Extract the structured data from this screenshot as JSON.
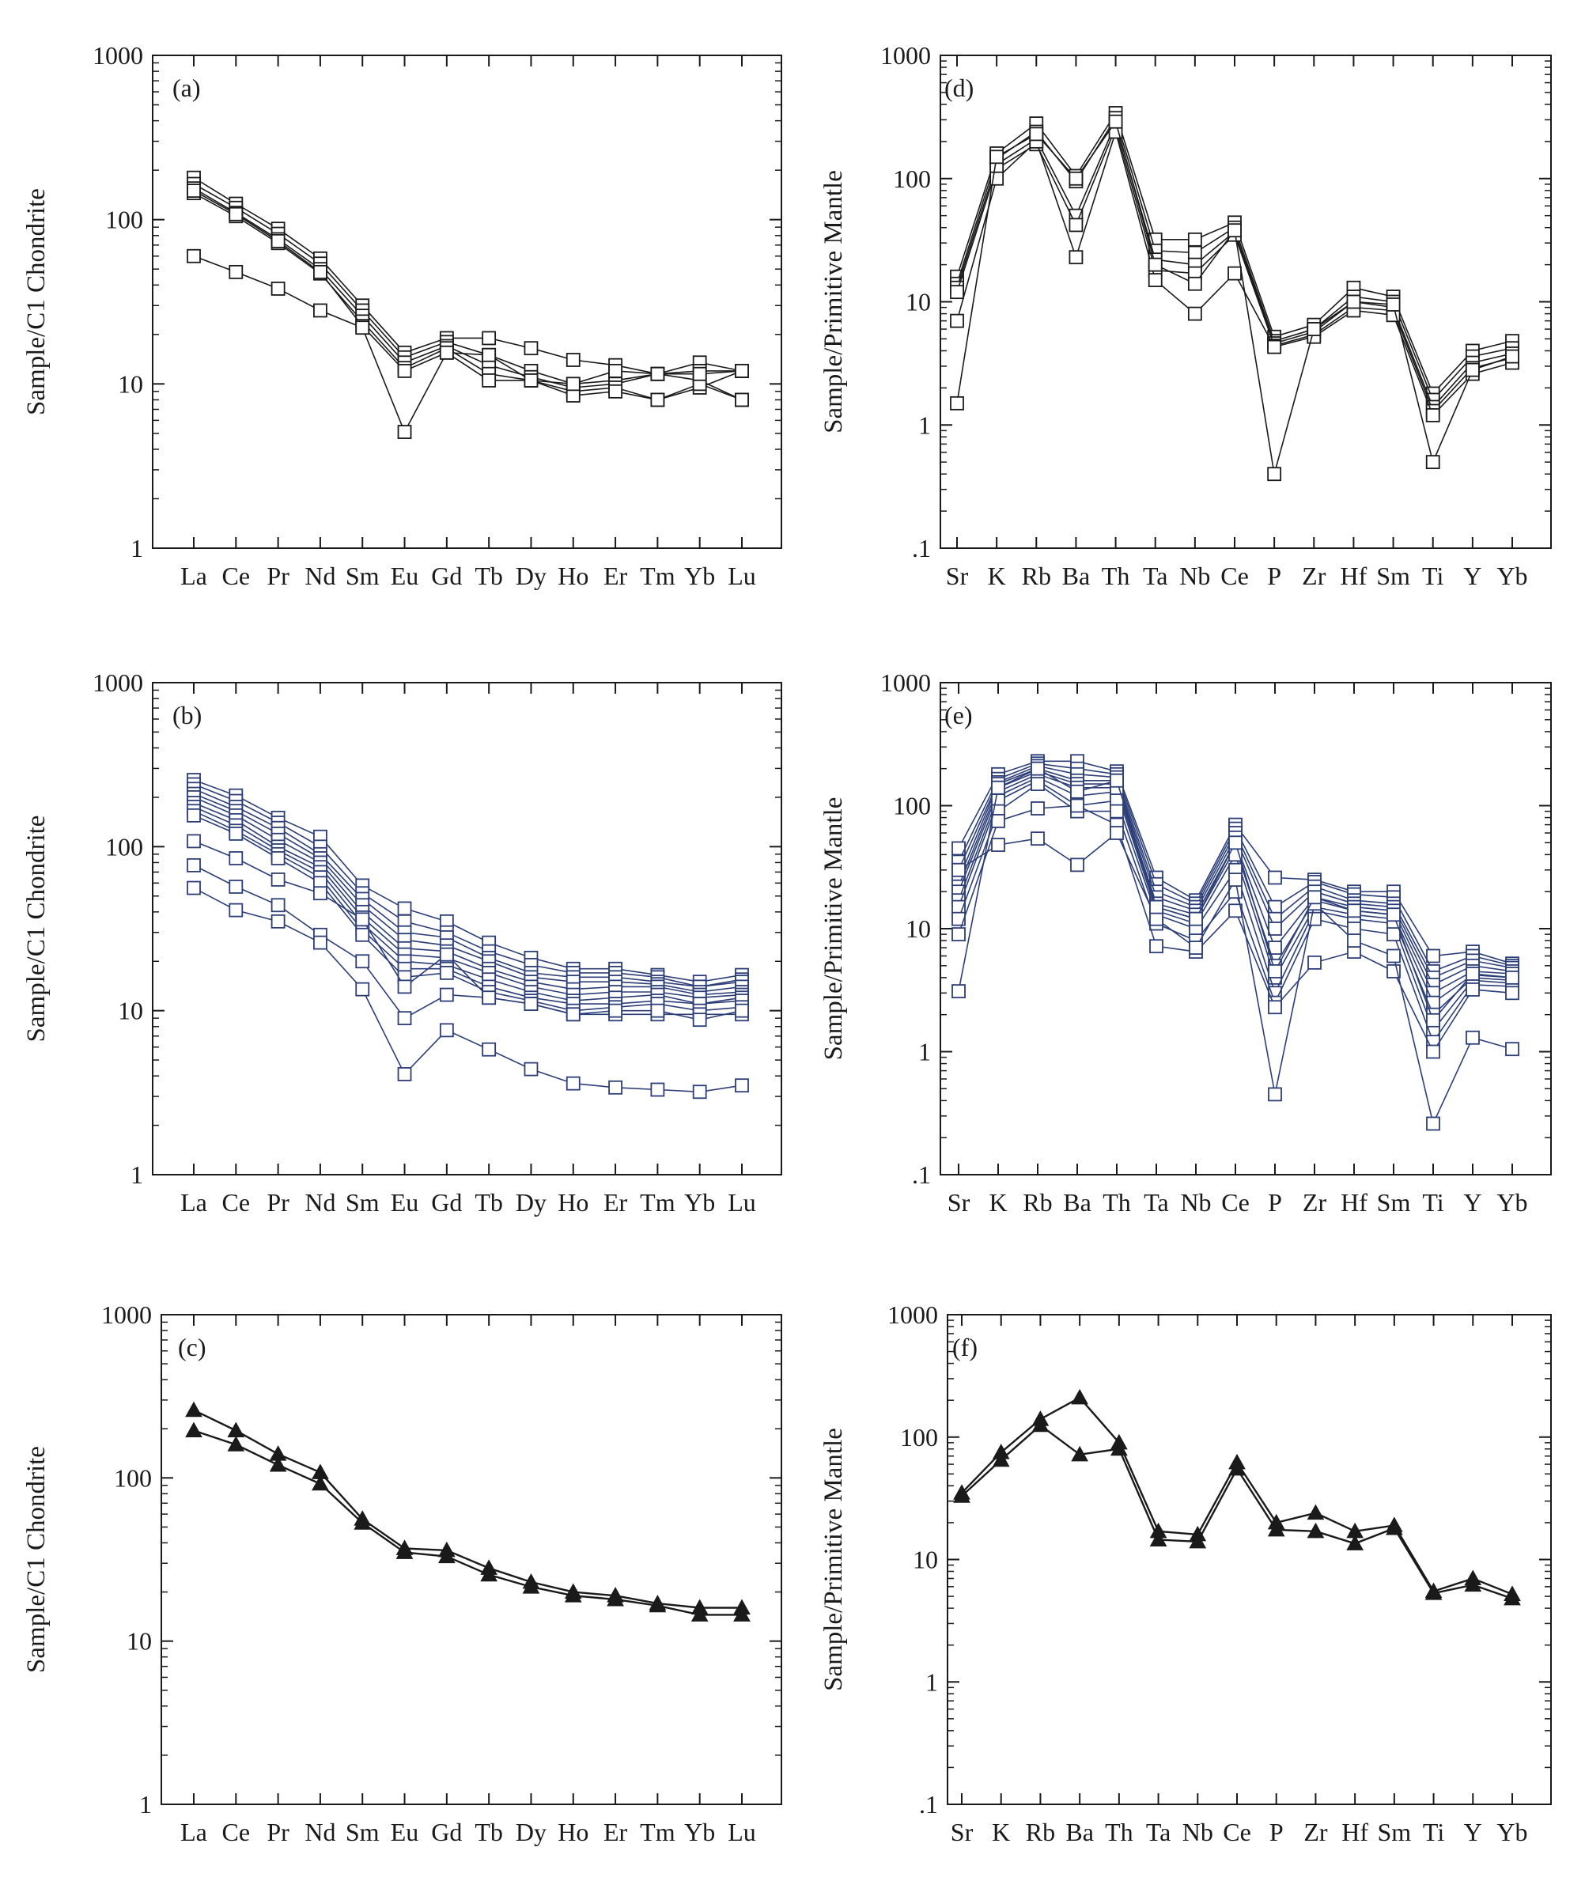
{
  "figure": {
    "colors": {
      "black": "#1a1a1a",
      "blue": "#2c3e78"
    },
    "ree_elements": [
      "La",
      "Ce",
      "Pr",
      "Nd",
      "Sm",
      "Eu",
      "Gd",
      "Tb",
      "Dy",
      "Ho",
      "Er",
      "Tm",
      "Yb",
      "Lu"
    ],
    "trace_elements": [
      "Sr",
      "K",
      "Rb",
      "Ba",
      "Th",
      "Ta",
      "Nb",
      "Ce",
      "P",
      "Zr",
      "Hf",
      "Sm",
      "Ti",
      "Y",
      "Yb"
    ],
    "ree_yticks": [
      "1",
      "10",
      "100",
      "1000"
    ],
    "trace_yticks": [
      ".1",
      "1",
      "10",
      "100",
      "1000"
    ]
  },
  "chart_data": [
    {
      "id": "a",
      "panel_label": "(a)",
      "type": "line",
      "scale": "log",
      "ylabel": "Sample/C1 Chondrite",
      "xaxis": "ree",
      "ylim": [
        1,
        1000
      ],
      "marker": "square",
      "color": "black",
      "series": [
        {
          "name": "a1",
          "values": [
            180,
            125,
            88,
            58,
            30,
            15.5,
            19,
            19,
            16.5,
            14,
            13,
            11.5,
            13.5,
            12
          ]
        },
        {
          "name": "a2",
          "values": [
            165,
            118,
            82,
            54,
            28,
            14.5,
            18,
            15,
            12,
            10,
            10.5,
            11.5,
            12,
            12
          ]
        },
        {
          "name": "a3",
          "values": [
            155,
            110,
            76,
            50,
            26,
            13.5,
            17,
            13,
            11,
            9.5,
            10,
            11.5,
            10.5,
            8
          ]
        },
        {
          "name": "a4",
          "values": [
            145,
            105,
            72,
            47,
            24,
            12.5,
            16.5,
            11.5,
            10.5,
            9,
            9.5,
            8,
            9.5,
            12
          ]
        },
        {
          "name": "a5",
          "values": [
            150,
            108,
            74,
            48,
            22.5,
            12,
            15.5,
            10.5,
            10.5,
            8.5,
            9,
            8,
            10,
            8
          ]
        },
        {
          "name": "a6",
          "values": [
            60,
            48,
            38,
            28,
            22,
            5.1,
            15.5,
            15,
            10.5,
            10,
            12,
            11.5,
            11.5,
            12
          ]
        }
      ]
    },
    {
      "id": "b",
      "panel_label": "(b)",
      "type": "line",
      "scale": "log",
      "ylabel": "Sample/C1 Chondrite",
      "xaxis": "ree",
      "ylim": [
        1,
        1000
      ],
      "marker": "square",
      "color": "blue",
      "series": [
        {
          "name": "b1",
          "values": [
            255,
            205,
            150,
            115,
            58,
            42,
            35,
            26,
            21,
            18,
            18,
            16.5,
            15,
            16.5
          ]
        },
        {
          "name": "b2",
          "values": [
            240,
            190,
            140,
            100,
            52,
            35,
            30,
            23,
            19,
            17,
            17,
            16,
            14,
            15.5
          ]
        },
        {
          "name": "b3",
          "values": [
            225,
            175,
            130,
            90,
            48,
            30,
            28,
            21,
            17,
            16,
            16,
            15,
            14,
            15
          ]
        },
        {
          "name": "b4",
          "values": [
            210,
            165,
            120,
            85,
            44,
            27,
            25,
            20,
            16,
            15,
            15,
            14.5,
            13,
            14
          ]
        },
        {
          "name": "b5",
          "values": [
            200,
            155,
            110,
            80,
            40,
            24,
            23,
            18,
            15,
            13.5,
            14,
            14,
            12.5,
            13
          ]
        },
        {
          "name": "b6",
          "values": [
            185,
            145,
            100,
            75,
            37,
            22,
            21,
            17,
            14,
            12.5,
            13,
            13,
            12,
            12.5
          ]
        },
        {
          "name": "b7",
          "values": [
            175,
            135,
            95,
            70,
            34,
            20,
            19,
            15.5,
            13,
            11.5,
            12,
            12.5,
            11,
            12
          ]
        },
        {
          "name": "b8",
          "values": [
            165,
            125,
            90,
            65,
            31,
            18,
            18,
            14,
            12,
            11,
            11,
            11.5,
            11,
            11.5
          ]
        },
        {
          "name": "b9",
          "values": [
            155,
            120,
            85,
            60,
            29,
            16,
            17,
            13,
            11.5,
            10,
            10.5,
            11,
            10,
            10.5
          ]
        },
        {
          "name": "b10",
          "values": [
            108,
            85,
            63,
            52,
            36,
            14,
            22,
            12,
            11,
            9.5,
            9.5,
            9.5,
            9.5,
            9.5
          ]
        },
        {
          "name": "b11",
          "values": [
            77,
            57,
            44,
            29,
            20,
            9,
            12.5,
            12,
            11,
            9.5,
            10,
            10,
            8.8,
            10
          ]
        },
        {
          "name": "b12",
          "values": [
            56,
            41,
            35,
            26,
            13.5,
            4.1,
            7.6,
            5.8,
            4.4,
            3.6,
            3.4,
            3.3,
            3.2,
            3.5
          ]
        }
      ]
    },
    {
      "id": "c",
      "panel_label": "(c)",
      "type": "line",
      "scale": "log",
      "ylabel": "Sample/C1 Chondrite",
      "xaxis": "ree",
      "ylim": [
        1,
        1000
      ],
      "marker": "triangle",
      "color": "black",
      "series": [
        {
          "name": "c1",
          "values": [
            260,
            195,
            140,
            108,
            56,
            37,
            36,
            28,
            23,
            20,
            19,
            17,
            16,
            16
          ]
        },
        {
          "name": "c2",
          "values": [
            195,
            160,
            120,
            92,
            53,
            35,
            33,
            25.5,
            21.5,
            19,
            18,
            16.5,
            14.5,
            14.5
          ]
        }
      ]
    },
    {
      "id": "d",
      "panel_label": "(d)",
      "type": "line",
      "scale": "log",
      "ylabel": "Sample/Primitive Mantle",
      "xaxis": "trace",
      "ylim": [
        0.1,
        1000
      ],
      "marker": "square",
      "color": "black",
      "series": [
        {
          "name": "d1",
          "values": [
            16,
            160,
            280,
            105,
            340,
            32,
            32,
            44,
            5.2,
            6.5,
            13,
            11,
            1.8,
            4,
            4.8
          ]
        },
        {
          "name": "d2",
          "values": [
            14,
            145,
            240,
            95,
            310,
            26,
            25,
            40,
            4.8,
            6,
            11,
            10,
            1.6,
            3.6,
            4.2
          ]
        },
        {
          "name": "d3",
          "values": [
            13,
            130,
            210,
            50,
            280,
            22,
            20,
            37,
            4.6,
            5.7,
            10,
            9,
            1.4,
            3.2,
            3.8
          ]
        },
        {
          "name": "d4",
          "values": [
            12,
            120,
            190,
            42,
            260,
            18,
            17,
            35,
            4.4,
            5.4,
            9,
            8.5,
            1.3,
            2.9,
            3.5
          ]
        },
        {
          "name": "d5",
          "values": [
            7,
            100,
            200,
            23,
            240,
            15,
            8,
            17,
            4.3,
            5.2,
            8.5,
            7.8,
            1.2,
            2.6,
            3.2
          ]
        },
        {
          "name": "d6",
          "values": [
            1.5,
            150,
            230,
            100,
            290,
            20,
            14,
            38,
            0.4,
            6,
            10,
            9.5,
            0.5,
            2.8,
            3.6
          ]
        }
      ]
    },
    {
      "id": "e",
      "panel_label": "(e)",
      "type": "line",
      "scale": "log",
      "ylabel": "Sample/Primitive Mantle",
      "xaxis": "trace",
      "ylim": [
        0.1,
        1000
      ],
      "marker": "square",
      "color": "blue",
      "series": [
        {
          "name": "e1",
          "values": [
            45,
            180,
            230,
            230,
            190,
            26,
            17,
            70,
            26,
            25,
            20,
            20,
            6,
            6.5,
            5.2
          ]
        },
        {
          "name": "e2",
          "values": [
            35,
            165,
            220,
            200,
            180,
            23,
            16,
            65,
            15,
            24,
            19,
            18,
            4.5,
            6,
            5
          ]
        },
        {
          "name": "e3",
          "values": [
            30,
            155,
            210,
            180,
            170,
            20,
            15,
            60,
            12,
            22,
            17,
            16,
            4,
            5.5,
            4.8
          ]
        },
        {
          "name": "e4",
          "values": [
            25,
            150,
            200,
            160,
            160,
            18,
            14,
            55,
            10,
            20,
            16,
            15,
            3.5,
            5,
            4.5
          ]
        },
        {
          "name": "e5",
          "values": [
            22,
            140,
            190,
            150,
            150,
            16,
            13,
            50,
            7,
            18,
            15,
            14,
            3,
            4.5,
            4.3
          ]
        },
        {
          "name": "e6",
          "values": [
            20,
            130,
            180,
            140,
            140,
            15,
            12,
            45,
            5,
            17,
            14,
            13,
            2.5,
            4.2,
            4
          ]
        },
        {
          "name": "e7",
          "values": [
            17,
            120,
            170,
            120,
            130,
            14,
            11,
            40,
            4,
            15,
            13,
            12,
            2,
            4,
            3.8
          ]
        },
        {
          "name": "e8",
          "values": [
            15,
            110,
            160,
            100,
            110,
            13,
            10,
            30,
            3,
            14,
            12,
            11,
            1.5,
            3.8,
            3.6
          ]
        },
        {
          "name": "e9",
          "values": [
            12,
            90,
            150,
            90,
            90,
            11,
            8,
            20,
            2.5,
            12,
            10,
            9,
            1.2,
            3.5,
            3.4
          ]
        },
        {
          "name": "e10",
          "values": [
            9,
            75,
            95,
            100,
            70,
            7.2,
            6.5,
            14,
            2.3,
            5.3,
            6.5,
            4.5,
            1,
            3.2,
            3
          ]
        },
        {
          "name": "e11",
          "values": [
            30,
            48,
            54,
            33,
            60,
            12,
            7,
            25,
            0.45,
            16,
            8,
            6,
            0.26,
            1.3,
            1.05
          ]
        },
        {
          "name": "e12",
          "values": [
            3.1,
            140,
            200,
            130,
            160,
            15,
            12,
            50,
            4.5,
            18,
            14,
            13,
            1.8,
            4.3,
            4
          ]
        }
      ]
    },
    {
      "id": "f",
      "panel_label": "(f)",
      "type": "line",
      "scale": "log",
      "ylabel": "Sample/Primitive Mantle",
      "xaxis": "trace",
      "ylim": [
        0.1,
        1000
      ],
      "marker": "triangle",
      "color": "black",
      "series": [
        {
          "name": "f1",
          "values": [
            35,
            75,
            140,
            210,
            90,
            17,
            16,
            62,
            20,
            24,
            17,
            19,
            5.5,
            7,
            5.2
          ]
        },
        {
          "name": "f2",
          "values": [
            33,
            65,
            125,
            72,
            80,
            14.5,
            14,
            55,
            17.5,
            17,
            13.5,
            18,
            5.3,
            6.2,
            4.8
          ]
        }
      ]
    }
  ]
}
